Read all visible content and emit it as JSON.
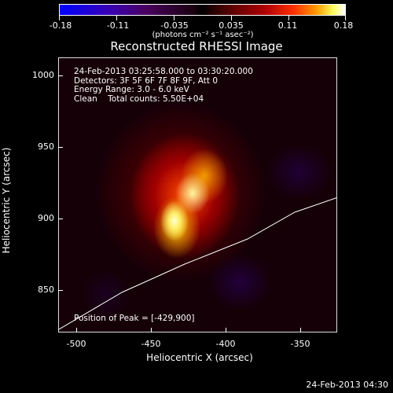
{
  "colorbar": {
    "ticks": [
      "-0.18",
      "-0.11",
      "-0.035",
      "0.035",
      "0.11",
      "0.18"
    ],
    "units_label": "(photons cm⁻² s⁻¹ asec⁻²)"
  },
  "title": "Reconstructed RHESSI Image",
  "info": {
    "time": "24-Feb-2013 03:25:58.000 to 03:30:20.000",
    "detectors": "Detectors: 3F 5F 6F 7F 8F 9F, Att 0",
    "energy": "Energy Range: 3.0 - 6.0 keV",
    "clean": "Clean    Total counts: 5.50E+04"
  },
  "peak": "Position of Peak = [-429,900]",
  "axes": {
    "xlabel": "Heliocentric X (arcsec)",
    "ylabel": "Heliocentric Y (arcsec)",
    "xticks": [
      "-500",
      "-450",
      "-400",
      "-350"
    ],
    "yticks": [
      "1000",
      "950",
      "900",
      "850"
    ]
  },
  "timestamp": "24-Feb-2013 04:30"
}
